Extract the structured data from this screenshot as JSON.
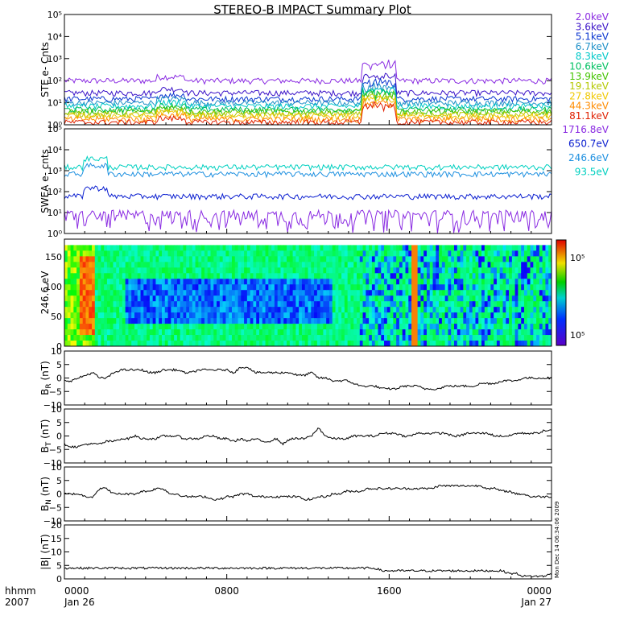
{
  "chart_data": {
    "type": "line",
    "title": "STEREO-B IMPACT Summary Plot",
    "x_ticks": [
      "0000",
      "0800",
      "1600",
      "0000"
    ],
    "x_range_hours": [
      0,
      24
    ],
    "time_label": "hhmm",
    "year_label": "2007",
    "start_date": "Jan 26",
    "end_date": "Jan 27",
    "timestamp": "Mon Dec 14 06:34:06 2009",
    "panels": [
      {
        "id": "ste",
        "ylabel": "STE e- Cnts",
        "scale": "log",
        "ylim": [
          1,
          100000
        ],
        "ytick_labels": [
          "10⁰",
          "10¹",
          "10²",
          "10³",
          "10⁴",
          "10⁵"
        ],
        "series": [
          {
            "name": "2.0keV",
            "color": "#8a2be2",
            "base": 100
          },
          {
            "name": "3.6keV",
            "color": "#3c14c8",
            "base": 28
          },
          {
            "name": "5.1keV",
            "color": "#0b36d0",
            "base": 15
          },
          {
            "name": "6.7keV",
            "color": "#1e90c8",
            "base": 10
          },
          {
            "name": "8.3keV",
            "color": "#00c8c8",
            "base": 7
          },
          {
            "name": "10.6keV",
            "color": "#00c060",
            "base": 5
          },
          {
            "name": "13.9keV",
            "color": "#44c400",
            "base": 4
          },
          {
            "name": "19.1keV",
            "color": "#b4c800",
            "base": 3
          },
          {
            "name": "27.8keV",
            "color": "#f0c800",
            "base": 2.5
          },
          {
            "name": "44.3keV",
            "color": "#ff8c00",
            "base": 1.8
          },
          {
            "name": "81.1keV",
            "color": "#e02000",
            "base": 1.3
          }
        ]
      },
      {
        "id": "swea",
        "ylabel": "SWEA e- cnts",
        "scale": "log",
        "ylim": [
          1,
          100000
        ],
        "ytick_labels": [
          "10⁰",
          "10¹",
          "10²",
          "10³",
          "10⁴",
          "10⁵"
        ],
        "series": [
          {
            "name": "1716.8eV",
            "color": "#8a2be2",
            "base": 3
          },
          {
            "name": "650.7eV",
            "color": "#0b1fd0",
            "base": 60
          },
          {
            "name": "246.6eV",
            "color": "#1e90e0",
            "base": 700
          },
          {
            "name": "93.5eV",
            "color": "#00d0c0",
            "base": 1500
          }
        ]
      },
      {
        "id": "pad",
        "ylabel": "246.6 eV",
        "type": "heatmap",
        "ylim": [
          0,
          180
        ],
        "ytick_labels": [
          "0",
          "50",
          "100",
          "150"
        ],
        "colorbar_labels": [
          "10⁵",
          "10⁵"
        ]
      },
      {
        "id": "br",
        "ylabel": "B_R (nT)",
        "ylabel_main": "B",
        "ylabel_sub": "R",
        "ylabel_unit": "(nT)",
        "ylim": [
          -10,
          10
        ],
        "ytick_labels": [
          "−10",
          "−5",
          "0",
          "5",
          "10"
        ],
        "values": [
          -1,
          -1,
          0,
          1,
          2,
          0,
          0,
          2,
          3,
          3,
          3,
          3,
          2,
          2,
          3,
          3,
          3,
          2,
          2,
          3,
          3,
          3,
          3,
          3,
          2,
          4,
          4,
          2,
          2,
          2,
          2,
          2,
          2,
          1,
          1,
          2,
          0,
          0,
          -1,
          -1,
          -1,
          -2,
          -3,
          -3,
          -3,
          -4,
          -4,
          -4,
          -3,
          -3,
          -3,
          -4,
          -4,
          -4,
          -3,
          -3,
          -3,
          -3,
          -3,
          -2,
          -2,
          -2,
          -1,
          -1,
          -1,
          0,
          0,
          0,
          0,
          0
        ]
      },
      {
        "id": "bt",
        "ylabel": "B_T (nT)",
        "ylabel_main": "B",
        "ylabel_sub": "T",
        "ylabel_unit": "(nT)",
        "ylim": [
          -10,
          10
        ],
        "ytick_labels": [
          "−10",
          "−5",
          "0",
          "5",
          "10"
        ],
        "values": [
          -3,
          -4,
          -4,
          -3,
          -3,
          -3,
          -2,
          -2,
          -1,
          -1,
          0,
          -1,
          -1,
          -1,
          0,
          0,
          0,
          -1,
          -1,
          -1,
          0,
          0,
          -1,
          -1,
          -2,
          -1,
          -2,
          -1,
          -2,
          -2,
          -1,
          -3,
          -1,
          -1,
          -1,
          0,
          3,
          0,
          -1,
          -1,
          -1,
          0,
          0,
          0,
          0,
          1,
          1,
          1,
          0,
          0,
          1,
          1,
          1,
          1,
          1,
          0,
          0,
          1,
          1,
          1,
          1,
          0,
          0,
          0,
          1,
          1,
          1,
          1,
          2,
          2
        ]
      },
      {
        "id": "bn",
        "ylabel": "B_N (nT)",
        "ylabel_main": "B",
        "ylabel_sub": "N",
        "ylabel_unit": "(nT)",
        "ylim": [
          -10,
          10
        ],
        "ytick_labels": [
          "−10",
          "−5",
          "0",
          "5",
          "10"
        ],
        "values": [
          0,
          0,
          0,
          -1,
          -1,
          2,
          2,
          0,
          0,
          0,
          0,
          1,
          1,
          2,
          2,
          0,
          0,
          -1,
          -1,
          -1,
          -1,
          -2,
          -2,
          -1,
          -1,
          0,
          0,
          -1,
          -1,
          -1,
          -1,
          -1,
          -1,
          -1,
          -2,
          -2,
          -1,
          -1,
          0,
          0,
          1,
          1,
          1,
          2,
          2,
          2,
          2,
          2,
          2,
          2,
          2,
          2,
          2,
          3,
          3,
          3,
          3,
          3,
          3,
          3,
          2,
          2,
          1,
          1,
          0,
          0,
          -1,
          -1,
          -1,
          -1
        ]
      },
      {
        "id": "bmag",
        "ylabel": "|B| (nT)",
        "ylabel_main": "|B|",
        "ylabel_sub": "",
        "ylabel_unit": "(nT)",
        "ylim": [
          0,
          20
        ],
        "ytick_labels": [
          "0",
          "5",
          "10",
          "15",
          "20"
        ],
        "values": [
          4,
          4,
          4,
          4,
          4,
          4,
          4,
          4,
          4,
          4,
          4,
          4,
          4,
          4,
          4,
          4,
          4,
          4,
          4,
          4,
          4,
          4,
          4,
          4,
          4,
          4,
          4,
          4,
          4,
          4,
          4,
          4,
          4,
          4,
          4,
          4,
          4,
          4,
          4,
          4,
          4,
          4,
          4,
          4,
          4,
          3,
          3,
          3,
          3,
          3,
          3,
          3,
          3,
          3,
          3,
          3,
          3,
          3,
          3,
          3,
          3,
          3,
          3,
          2,
          2,
          1,
          1,
          1,
          1,
          2
        ]
      }
    ]
  }
}
